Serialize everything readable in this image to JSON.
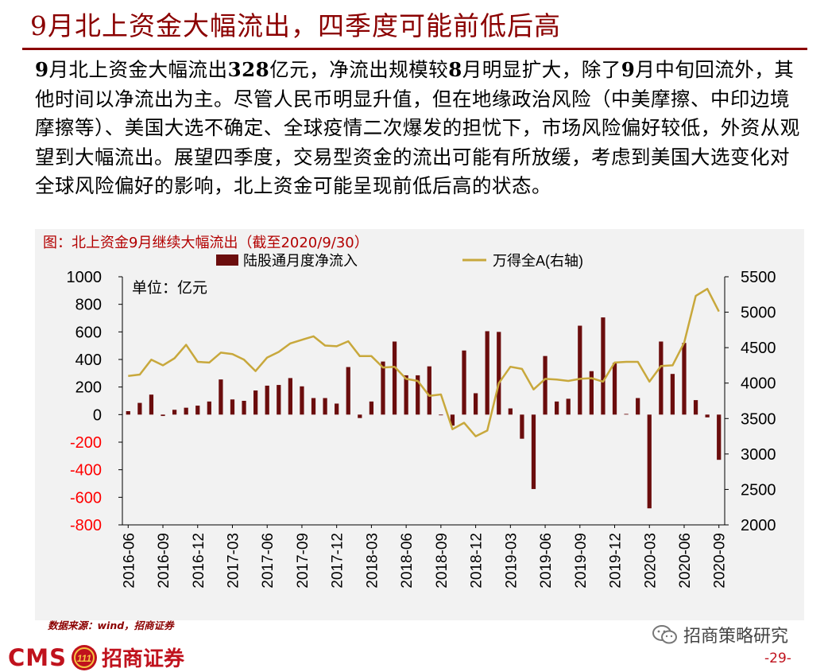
{
  "header": {
    "title": "9月北上资金大幅流出，四季度可能前低后高"
  },
  "paragraph": {
    "part1": "9",
    "part2": "月北上资金大幅流出",
    "part3": "328",
    "part4": "亿元，净流出规模较",
    "part5": "8",
    "part6": "月明显扩大，除了",
    "part7": "9",
    "part8": "月中旬回流外，其他时间以净流出为主。尽管人民币明显升值，但在地缘政治风险（中美摩擦、中印边境摩擦等）、美国大选不确定、全球疫情二次爆发的担忧下，市场风险偏好较低，外资从观望到大幅流出。展望四季度，交易型资金的流出可能有所放缓，考虑到美国大选变化对全球风险偏好的影响，北上资金可能呈现前低后高的状态。"
  },
  "chart_title": "图：北上资金9月继续大幅流出（截至2020/9/30）",
  "chart_data": {
    "type": "bar",
    "unit_label": "单位：亿元",
    "categories": [
      "2016-06",
      "2016-07",
      "2016-08",
      "2016-09",
      "2016-10",
      "2016-11",
      "2016-12",
      "2017-01",
      "2017-02",
      "2017-03",
      "2017-04",
      "2017-05",
      "2017-06",
      "2017-07",
      "2017-08",
      "2017-09",
      "2017-10",
      "2017-11",
      "2017-12",
      "2018-01",
      "2018-02",
      "2018-03",
      "2018-04",
      "2018-05",
      "2018-06",
      "2018-07",
      "2018-08",
      "2018-09",
      "2018-10",
      "2018-11",
      "2018-12",
      "2019-01",
      "2019-02",
      "2019-03",
      "2019-04",
      "2019-05",
      "2019-06",
      "2019-07",
      "2019-08",
      "2019-09",
      "2019-10",
      "2019-11",
      "2019-12",
      "2020-01",
      "2020-02",
      "2020-03",
      "2020-04",
      "2020-05",
      "2020-06",
      "2020-07",
      "2020-08",
      "2020-09"
    ],
    "x_tick_labels": [
      "2016-06",
      "2016-09",
      "2016-12",
      "2017-03",
      "2017-06",
      "2017-09",
      "2017-12",
      "2018-03",
      "2018-06",
      "2018-09",
      "2018-12",
      "2019-03",
      "2019-06",
      "2019-09",
      "2019-12",
      "2020-03",
      "2020-06",
      "2020-09"
    ],
    "series": [
      {
        "name": "陆股通月度净流入",
        "axis": "left",
        "color": "#6b0d0d",
        "values": [
          25,
          85,
          145,
          -10,
          35,
          50,
          65,
          95,
          255,
          110,
          100,
          175,
          210,
          215,
          265,
          205,
          120,
          120,
          80,
          345,
          -25,
          95,
          385,
          530,
          285,
          285,
          350,
          -5,
          -80,
          465,
          155,
          605,
          600,
          45,
          -175,
          -540,
          425,
          95,
          115,
          645,
          315,
          705,
          375,
          5,
          120,
          -680,
          530,
          295,
          520,
          105,
          -20,
          -328
        ]
      },
      {
        "name": "万得全A(右轴)",
        "axis": "right",
        "color": "#c8a83c",
        "values": [
          4100,
          4120,
          4330,
          4250,
          4350,
          4540,
          4300,
          4290,
          4430,
          4410,
          4330,
          4170,
          4360,
          4440,
          4560,
          4610,
          4660,
          4530,
          4520,
          4590,
          4380,
          4380,
          4220,
          4230,
          4060,
          4030,
          3820,
          3840,
          3350,
          3440,
          3250,
          3330,
          4000,
          4230,
          4200,
          3910,
          4060,
          4050,
          4030,
          4060,
          4070,
          4020,
          4290,
          4300,
          4300,
          4020,
          4240,
          4250,
          4570,
          5230,
          5330,
          5010
        ]
      }
    ],
    "y_left": {
      "min": -800,
      "max": 1000,
      "ticks": [
        "1000",
        "800",
        "600",
        "400",
        "200",
        "0",
        "-200",
        "-400",
        "-600",
        "-800"
      ]
    },
    "y_right": {
      "min": 2000,
      "max": 5500,
      "ticks": [
        "5500",
        "5000",
        "4500",
        "4000",
        "3500",
        "3000",
        "2500",
        "2000"
      ]
    },
    "negative_tick_color": "#ff0000",
    "legend_position": "top"
  },
  "footer": {
    "source": "数据来源：wind，招商证券",
    "wechat_label": "招商策略研究",
    "logo_cms": "CMS",
    "logo_badge": "111",
    "logo_name": "招商证券",
    "page_number": "-29-"
  }
}
